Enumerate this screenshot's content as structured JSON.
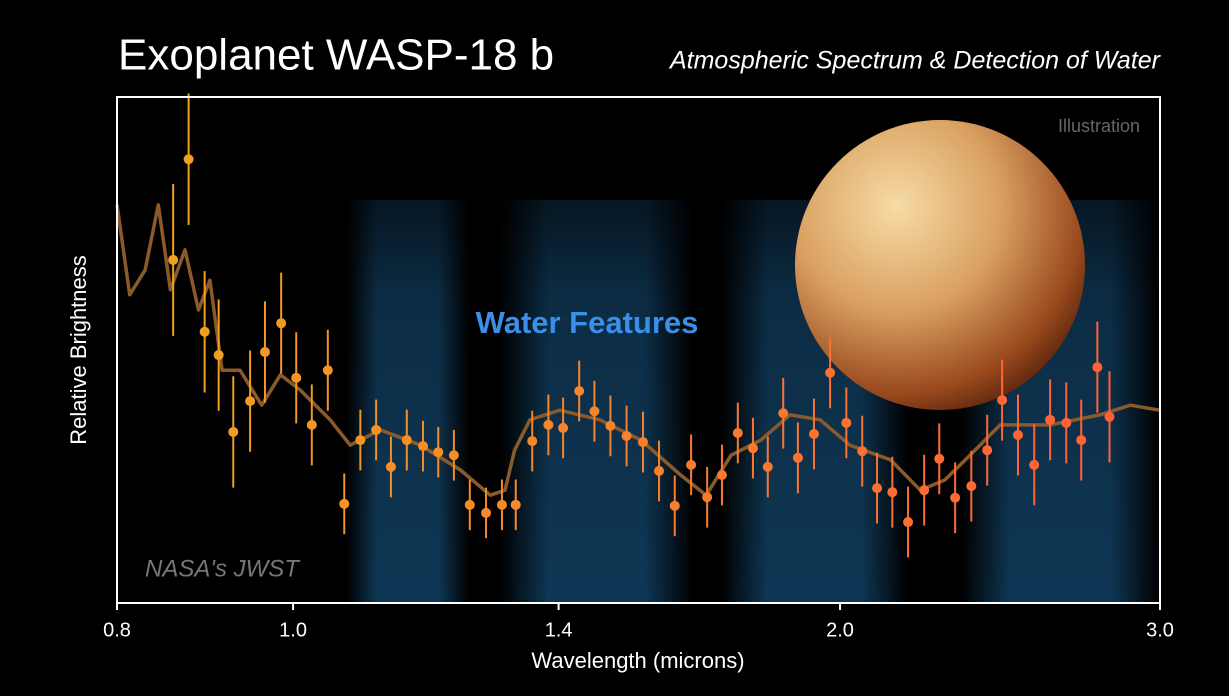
{
  "chart_data": {
    "type": "scatter",
    "title": "Exoplanet WASP-18 b",
    "subtitle": "Atmospheric Spectrum & Detection of Water",
    "xlabel": "Wavelength (microns)",
    "ylabel": "Relative Brightness",
    "annotations": {
      "water": "Water Features",
      "illustration": "Illustration",
      "credit": "NASA's JWST"
    },
    "xscale": "log",
    "xlim": [
      0.8,
      3.0
    ],
    "ylim": [
      0,
      100
    ],
    "xticks": [
      0.8,
      {
        "value": 1.0,
        "label": "1.0"
      },
      1.4,
      {
        "value": 2.0,
        "label": "2.0"
      },
      {
        "value": 3.0,
        "label": "3.0"
      }
    ],
    "water_bands": [
      [
        1.07,
        1.25
      ],
      [
        1.3,
        1.66
      ],
      [
        1.72,
        2.18
      ],
      [
        2.33,
        3.0
      ]
    ],
    "water_color": "#1e6eaa",
    "observations": {
      "color_start": "#f0a020",
      "color_end": "#ff6038",
      "x": [
        0.859,
        0.876,
        0.894,
        0.91,
        0.927,
        0.947,
        0.965,
        0.985,
        1.004,
        1.024,
        1.045,
        1.067,
        1.089,
        1.111,
        1.132,
        1.155,
        1.179,
        1.202,
        1.226,
        1.251,
        1.277,
        1.303,
        1.326,
        1.354,
        1.382,
        1.408,
        1.437,
        1.465,
        1.495,
        1.526,
        1.558,
        1.59,
        1.622,
        1.656,
        1.69,
        1.722,
        1.757,
        1.791,
        1.825,
        1.861,
        1.896,
        1.935,
        1.975,
        2.016,
        2.057,
        2.096,
        2.137,
        2.18,
        2.225,
        2.268,
        2.314,
        2.362,
        2.41,
        2.456,
        2.506,
        2.558,
        2.61,
        2.664,
        2.715,
        2.771,
        2.814
      ],
      "values": [
        67.8,
        87.7,
        53.6,
        49.0,
        33.8,
        39.9,
        49.6,
        55.3,
        44.5,
        35.2,
        46.0,
        19.6,
        32.2,
        34.2,
        26.9,
        32.2,
        31.0,
        29.8,
        29.2,
        19.4,
        17.8,
        19.4,
        19.4,
        32.0,
        35.2,
        34.6,
        41.9,
        37.9,
        35.0,
        33.0,
        31.8,
        26.1,
        19.2,
        27.3,
        20.9,
        25.3,
        33.6,
        30.6,
        26.9,
        37.5,
        28.7,
        33.4,
        45.5,
        35.6,
        30.0,
        22.7,
        21.9,
        16.0,
        22.3,
        28.5,
        20.8,
        23.1,
        30.2,
        40.1,
        33.2,
        27.3,
        36.2,
        35.6,
        32.2,
        46.6,
        36.8
      ],
      "errors": [
        15,
        13,
        12,
        11,
        11,
        10,
        10,
        10,
        9,
        8,
        8,
        6,
        6,
        6,
        6,
        6,
        5,
        5,
        5,
        5,
        5,
        5,
        5,
        6,
        6,
        6,
        6,
        6,
        6,
        6,
        6,
        6,
        6,
        6,
        6,
        6,
        6,
        6,
        6,
        7,
        7,
        7,
        7,
        7,
        7,
        7,
        7,
        7,
        7,
        7,
        7,
        7,
        7,
        8,
        8,
        8,
        8,
        8,
        8,
        9,
        9
      ]
    },
    "model": {
      "color": "#8a5a2a",
      "x": [
        0.8,
        0.813,
        0.829,
        0.843,
        0.856,
        0.872,
        0.887,
        0.9,
        0.914,
        0.935,
        0.961,
        0.984,
        1.009,
        1.048,
        1.075,
        1.117,
        1.175,
        1.236,
        1.284,
        1.308,
        1.324,
        1.35,
        1.402,
        1.475,
        1.554,
        1.634,
        1.688,
        1.742,
        1.809,
        1.877,
        1.95,
        2.025,
        2.132,
        2.214,
        2.284,
        2.358,
        2.45,
        2.61,
        2.781,
        2.889,
        3.0
      ],
      "values": [
        78.7,
        60.9,
        65.8,
        78.7,
        61.9,
        69.8,
        57.9,
        63.8,
        46.0,
        46.0,
        39.1,
        45.1,
        42.1,
        36.2,
        31.2,
        34.2,
        31.2,
        26.3,
        21.3,
        22.3,
        30.2,
        36.2,
        38.1,
        36.2,
        32.2,
        25.3,
        21.3,
        29.2,
        32.2,
        37.2,
        36.2,
        31.2,
        28.3,
        22.3,
        24.3,
        29.2,
        35.2,
        35.2,
        37.2,
        39.1,
        38.1
      ]
    }
  }
}
